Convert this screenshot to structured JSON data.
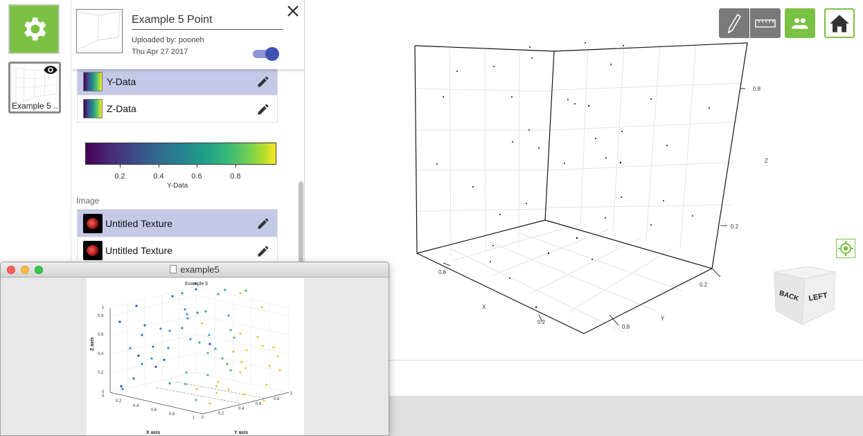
{
  "rail": {
    "thumb_label": "Example 5 ..."
  },
  "header": {
    "title": "Example 5 Point",
    "uploader": "Uploaded by: pooneh",
    "date": "Thu Apr 27 2017"
  },
  "layers": {
    "items": [
      {
        "label": "Y-Data",
        "selected": true
      },
      {
        "label": "Z-Data",
        "selected": false
      }
    ]
  },
  "colorbar": {
    "ticks": [
      "0.2",
      "0.4",
      "0.6",
      "0.8"
    ],
    "label": "Y-Data",
    "colormap": "viridis"
  },
  "image_section": {
    "label": "Image",
    "items": [
      {
        "label": "Untitled Texture",
        "selected": true
      },
      {
        "label": "Untitled Texture",
        "selected": false
      }
    ]
  },
  "plot3d": {
    "axis_labels": {
      "x": "X",
      "y": "Y",
      "z": "Z"
    },
    "ticks": {
      "z_high": "0.8",
      "z_low": "0.2",
      "x_near": "0.8",
      "x_far": "0.2",
      "y_near": "0.8",
      "y_far": "0.2"
    }
  },
  "view_cube": {
    "back": "BACK",
    "left": "LEFT"
  },
  "window": {
    "title": "example5",
    "figure": {
      "title": "Example 5",
      "xlabel": "X axis",
      "ylabel": "Y axis",
      "zlabel": "Z axis",
      "z_ticks": [
        "0",
        "0.2",
        "0.4",
        "0.6",
        "0.8",
        "1"
      ],
      "x_ticks": [
        "0",
        "0.2",
        "0.4",
        "0.6",
        "0.8",
        "1"
      ],
      "y_ticks": [
        "0",
        "0.2",
        "0.4",
        "0.6",
        "0.8",
        "1"
      ]
    }
  },
  "colors": {
    "accent_green": "#7bc144",
    "selection": "#c5c9e8",
    "toggle": "#3f51b5"
  }
}
